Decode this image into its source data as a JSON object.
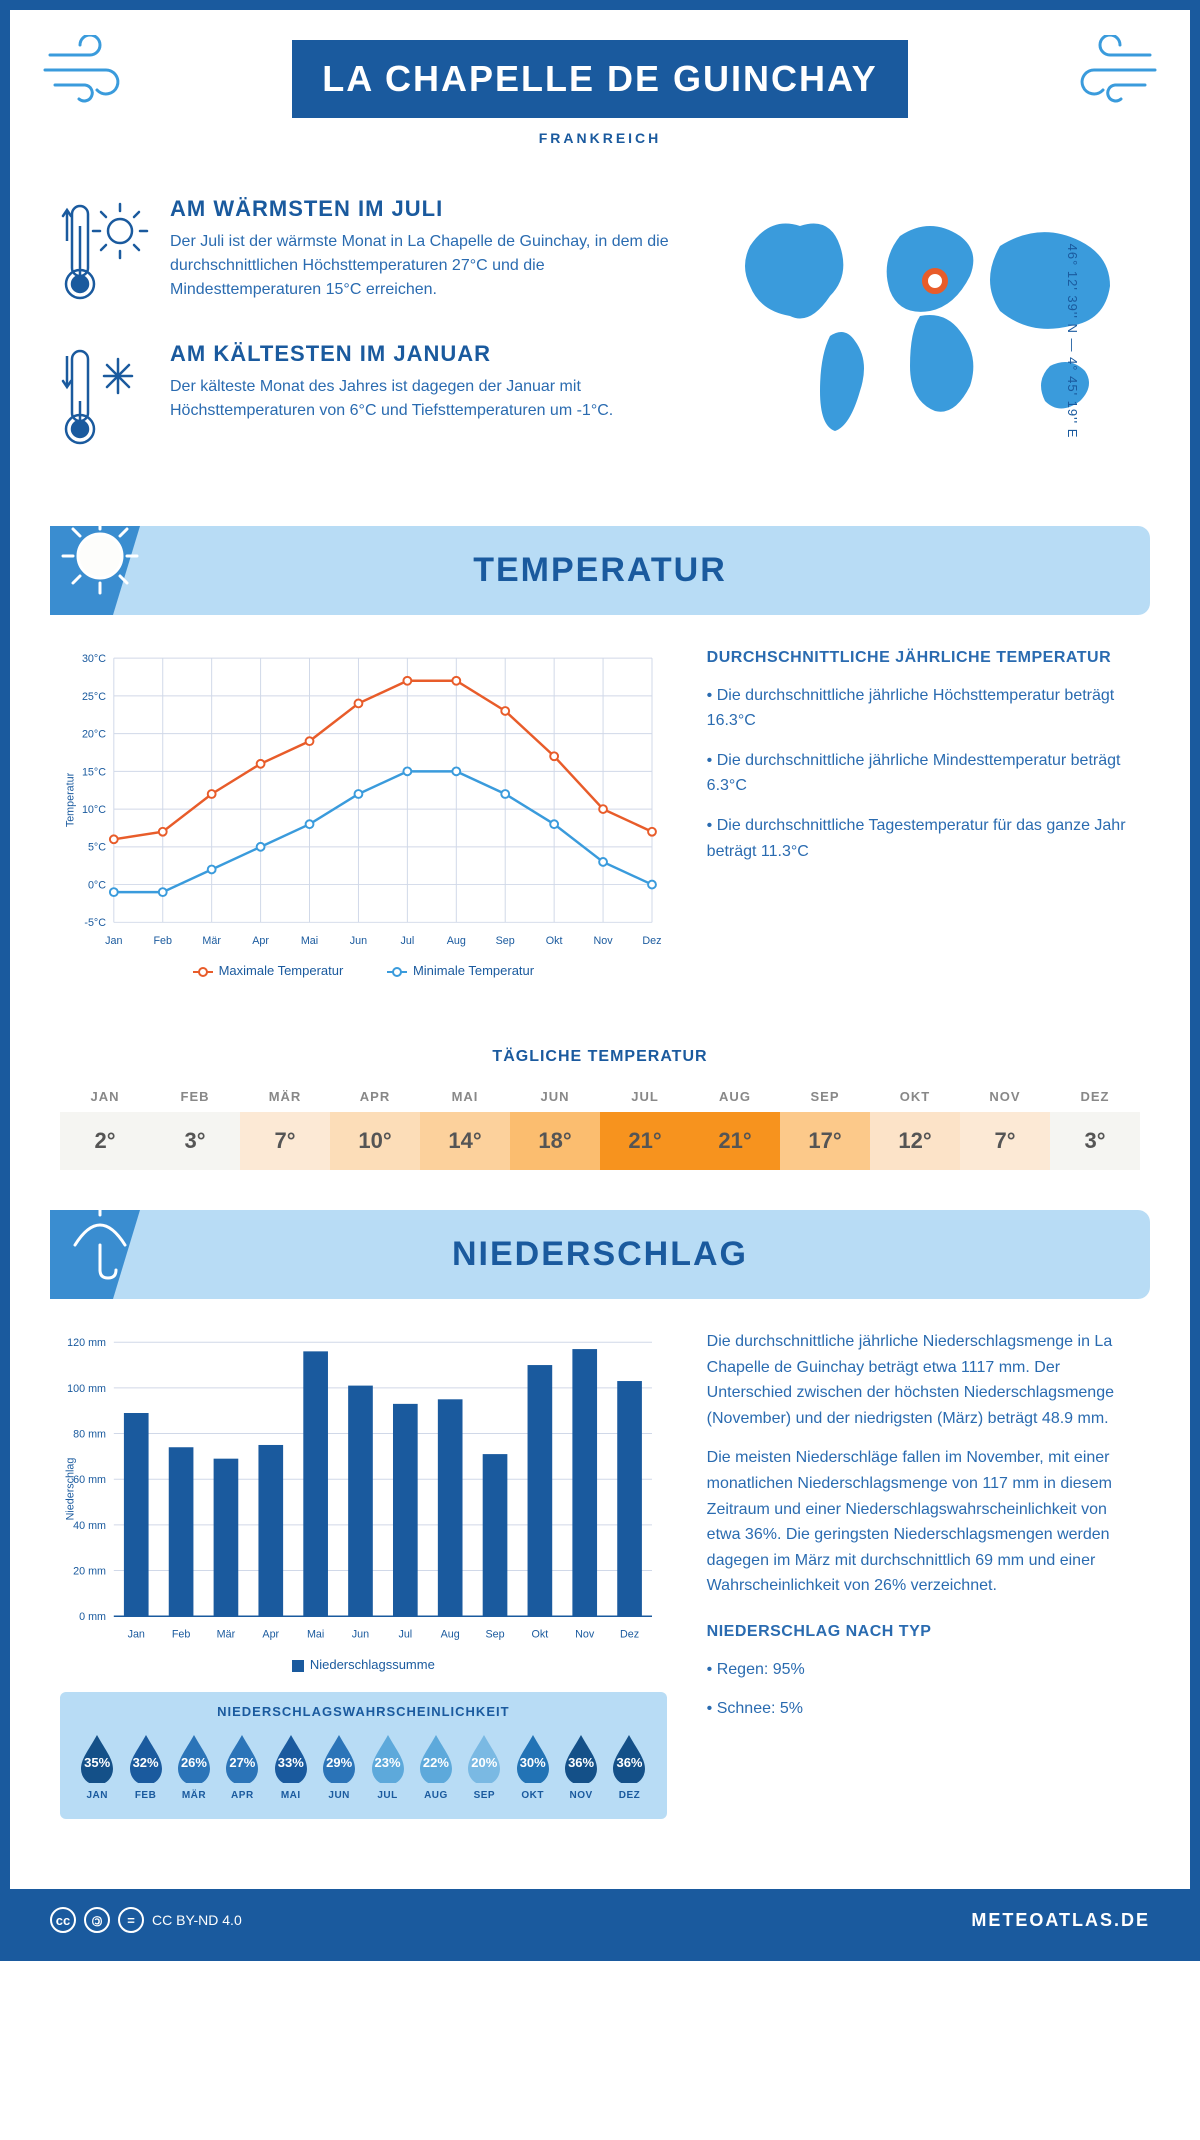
{
  "header": {
    "title": "LA CHAPELLE DE GUINCHAY",
    "country": "FRANKREICH"
  },
  "coords": "46° 12' 39'' N — 4° 45' 19'' E",
  "facts": {
    "warm": {
      "title": "AM WÄRMSTEN IM JULI",
      "text": "Der Juli ist der wärmste Monat in La Chapelle de Guinchay, in dem die durchschnittlichen Höchsttemperaturen 27°C und die Mindesttemperaturen 15°C erreichen."
    },
    "cold": {
      "title": "AM KÄLTESTEN IM JANUAR",
      "text": "Der kälteste Monat des Jahres ist dagegen der Januar mit Höchsttemperaturen von 6°C und Tiefsttemperaturen um -1°C."
    }
  },
  "temp_section_title": "TEMPERATUR",
  "precip_section_title": "NIEDERSCHLAG",
  "months_short": [
    "Jan",
    "Feb",
    "Mär",
    "Apr",
    "Mai",
    "Jun",
    "Jul",
    "Aug",
    "Sep",
    "Okt",
    "Nov",
    "Dez"
  ],
  "months_upper": [
    "JAN",
    "FEB",
    "MÄR",
    "APR",
    "MAI",
    "JUN",
    "JUL",
    "AUG",
    "SEP",
    "OKT",
    "NOV",
    "DEZ"
  ],
  "temp_chart": {
    "type": "line",
    "y_axis_title": "Temperatur",
    "ymin": -5,
    "ymax": 30,
    "ystep": 5,
    "series": [
      {
        "name": "Maximale Temperatur",
        "color": "#e85c2a",
        "values": [
          6,
          7,
          12,
          16,
          19,
          24,
          27,
          27,
          23,
          17,
          10,
          7
        ]
      },
      {
        "name": "Minimale Temperatur",
        "color": "#3a9bdc",
        "values": [
          -1,
          -1,
          2,
          5,
          8,
          12,
          15,
          15,
          12,
          8,
          3,
          0
        ]
      }
    ],
    "grid_color": "#d0d8e8",
    "background": "#ffffff"
  },
  "temp_text": {
    "title": "DURCHSCHNITTLICHE JÄHRLICHE TEMPERATUR",
    "bullets": [
      "Die durchschnittliche jährliche Höchsttemperatur beträgt 16.3°C",
      "Die durchschnittliche jährliche Mindesttemperatur beträgt 6.3°C",
      "Die durchschnittliche Tagestemperatur für das ganze Jahr beträgt 11.3°C"
    ]
  },
  "daily_temp": {
    "title": "TÄGLICHE TEMPERATUR",
    "values": [
      "2°",
      "3°",
      "7°",
      "10°",
      "14°",
      "18°",
      "21°",
      "21°",
      "17°",
      "12°",
      "7°",
      "3°"
    ],
    "colors": [
      "#f5f5f2",
      "#f5f5f2",
      "#fce9d5",
      "#fcddb8",
      "#fcd19c",
      "#fbbd6f",
      "#f7931e",
      "#f7931e",
      "#fcc98a",
      "#fce3c8",
      "#fce9d5",
      "#f5f5f2"
    ]
  },
  "precip_chart": {
    "type": "bar",
    "y_axis_title": "Niederschlag",
    "legend": "Niederschlagssumme",
    "ymin": 0,
    "ymax": 120,
    "ystep": 20,
    "values": [
      89,
      74,
      69,
      75,
      116,
      101,
      93,
      95,
      71,
      110,
      117,
      103
    ],
    "bar_color": "#1a5a9e",
    "grid_color": "#d0d8e8"
  },
  "precip_text": {
    "paragraphs": [
      "Die durchschnittliche jährliche Niederschlagsmenge in La Chapelle de Guinchay beträgt etwa 1117 mm. Der Unterschied zwischen der höchsten Niederschlagsmenge (November) und der niedrigsten (März) beträgt 48.9 mm.",
      "Die meisten Niederschläge fallen im November, mit einer monatlichen Niederschlagsmenge von 117 mm in diesem Zeitraum und einer Niederschlagswahrscheinlichkeit von etwa 36%. Die geringsten Niederschlagsmengen werden dagegen im März mit durchschnittlich 69 mm und einer Wahrscheinlichkeit von 26% verzeichnet."
    ],
    "type_title": "NIEDERSCHLAG NACH TYP",
    "type_bullets": [
      "Regen: 95%",
      "Schnee: 5%"
    ]
  },
  "precip_prob": {
    "title": "NIEDERSCHLAGSWAHRSCHEINLICHKEIT",
    "values": [
      "35%",
      "32%",
      "26%",
      "27%",
      "33%",
      "29%",
      "23%",
      "22%",
      "20%",
      "30%",
      "36%",
      "36%"
    ],
    "colors": [
      "#145088",
      "#1a5a9e",
      "#2b74b8",
      "#2b74b8",
      "#1a5a9e",
      "#2b74b8",
      "#5da9db",
      "#5da9db",
      "#7ab9e3",
      "#2273b5",
      "#145088",
      "#145088"
    ]
  },
  "footer": {
    "license": "CC BY-ND 4.0",
    "brand": "METEOATLAS.DE"
  }
}
